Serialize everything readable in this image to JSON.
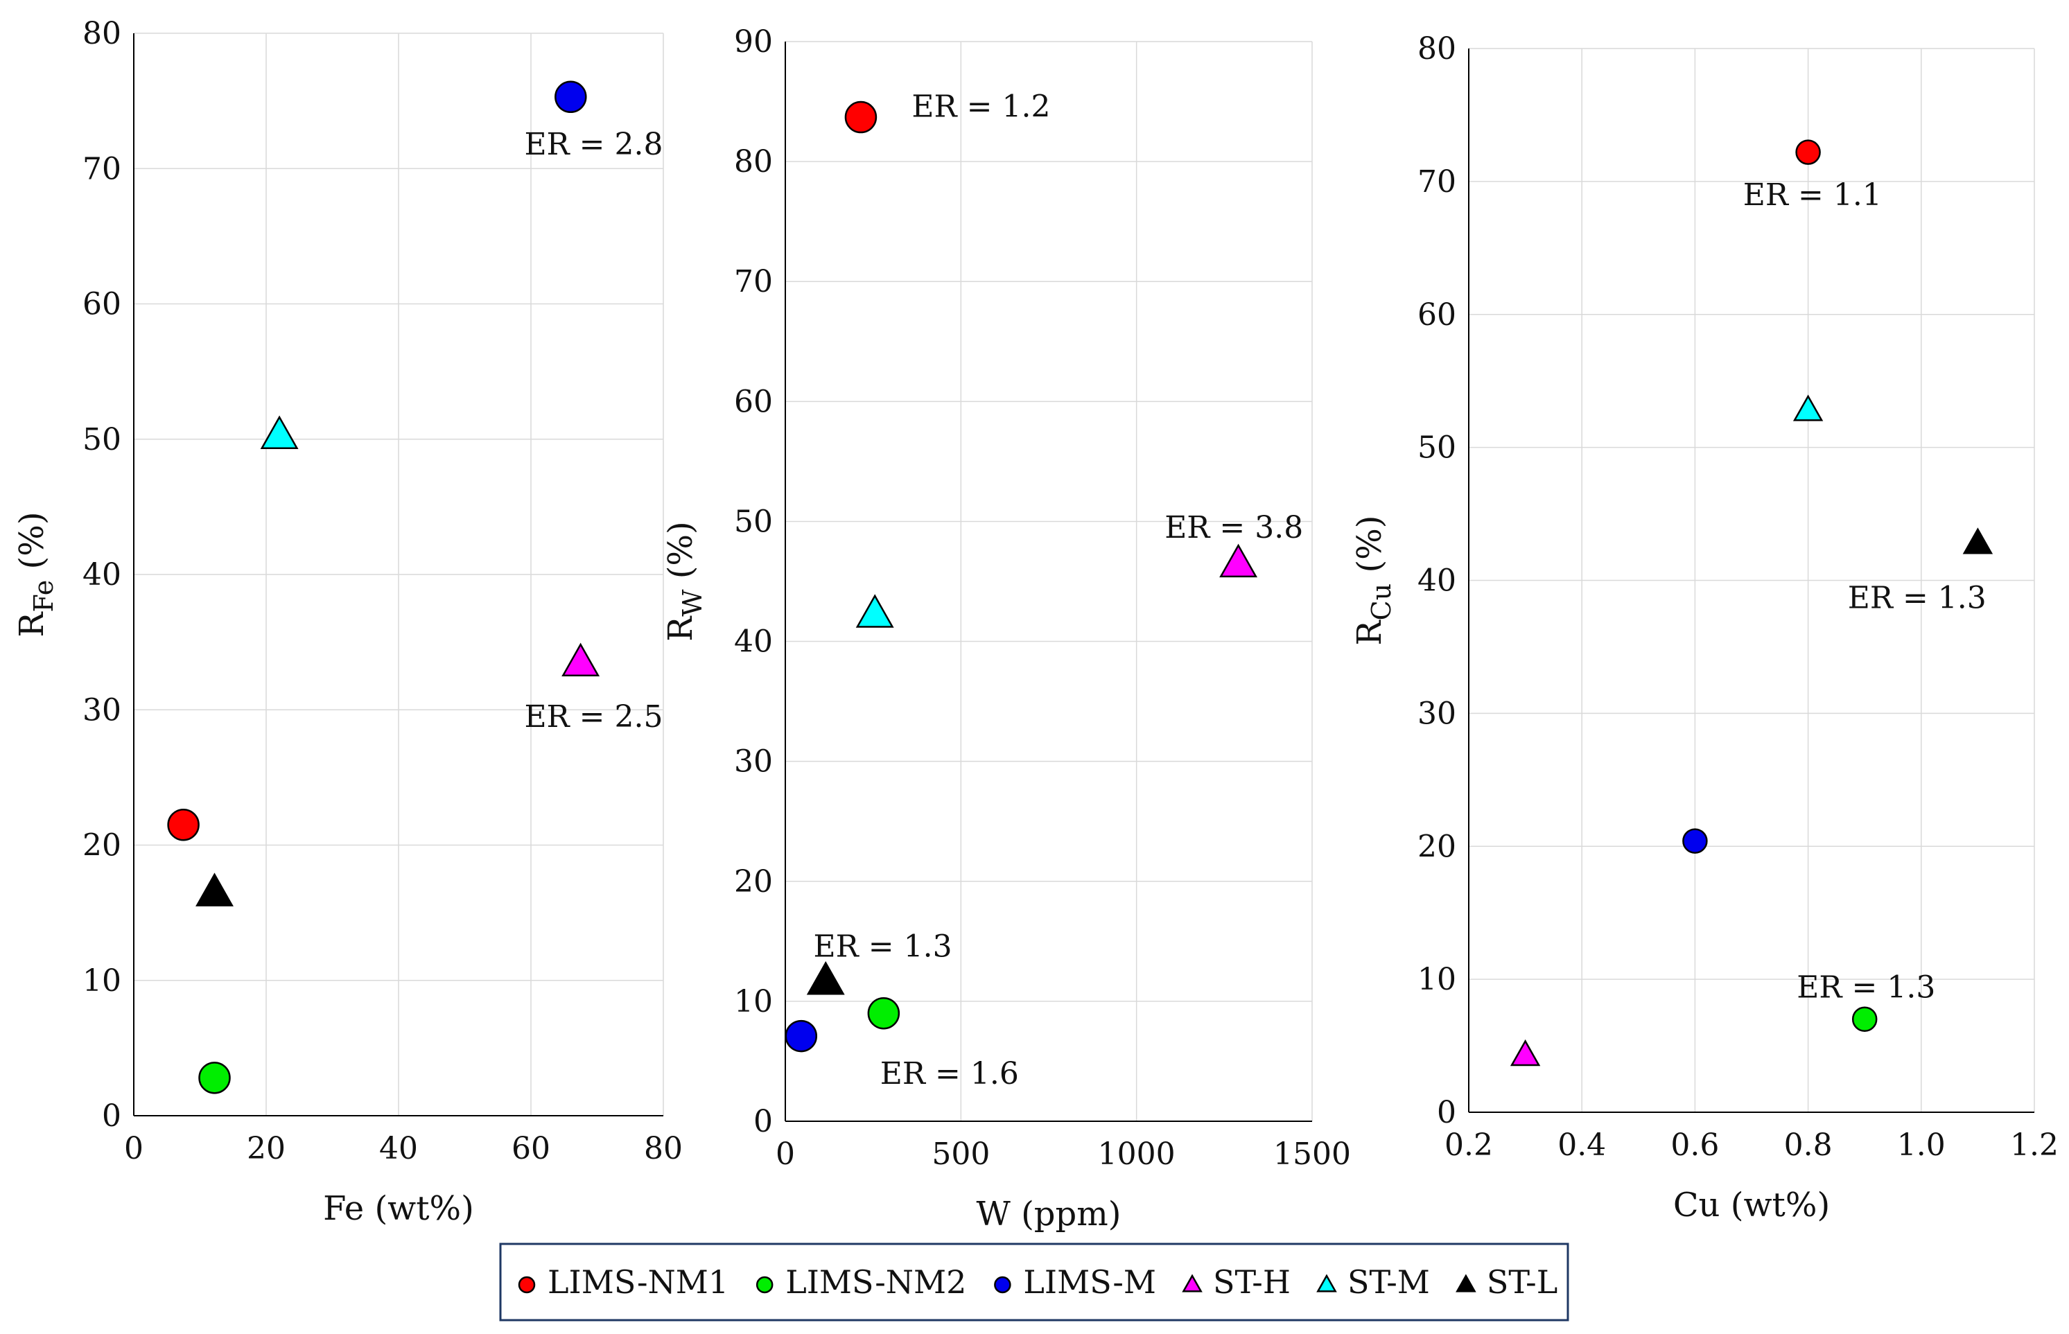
{
  "chart_data": [
    {
      "type": "scatter",
      "xlabel": "Fe (wt%)",
      "ylabel": {
        "base": "R",
        "sub": "Fe",
        "suffix": " (%)"
      },
      "xlim": [
        0,
        80
      ],
      "ylim": [
        0,
        80
      ],
      "xticks": [
        0,
        20,
        40,
        60,
        80
      ],
      "yticks": [
        0,
        10,
        20,
        30,
        40,
        50,
        60,
        70,
        80
      ],
      "xtick_labels": [
        "0",
        "20",
        "40",
        "60",
        "80"
      ],
      "ytick_labels": [
        "0",
        "10",
        "20",
        "30",
        "40",
        "50",
        "60",
        "70",
        "80"
      ],
      "grid": true,
      "points": [
        {
          "series": "LIMS-NM1",
          "x": 7.5,
          "y": 21.5
        },
        {
          "series": "LIMS-NM2",
          "x": 12.2,
          "y": 2.8
        },
        {
          "series": "LIMS-M",
          "x": 66.0,
          "y": 75.3
        },
        {
          "series": "ST-H",
          "x": 67.5,
          "y": 33.5
        },
        {
          "series": "ST-M",
          "x": 22.0,
          "y": 50.3
        },
        {
          "series": "ST-L",
          "x": 12.2,
          "y": 16.5
        }
      ],
      "annotations": [
        {
          "text": "ER = 2.8",
          "x": 59.0,
          "y": 71.8
        },
        {
          "text": "ER = 2.5",
          "x": 59.0,
          "y": 29.5
        }
      ]
    },
    {
      "type": "scatter",
      "xlabel": "W (ppm)",
      "ylabel": {
        "base": "R",
        "sub": "W",
        "suffix": " (%)"
      },
      "xlim": [
        0,
        1500
      ],
      "ylim": [
        0,
        90
      ],
      "xticks": [
        0,
        500,
        1000,
        1500
      ],
      "yticks": [
        0,
        10,
        20,
        30,
        40,
        50,
        60,
        70,
        80,
        90
      ],
      "xtick_labels": [
        "0",
        "500",
        "1000",
        "1500"
      ],
      "ytick_labels": [
        "0",
        "10",
        "20",
        "30",
        "40",
        "50",
        "60",
        "70",
        "80",
        "90"
      ],
      "grid": true,
      "points": [
        {
          "series": "LIMS-NM1",
          "x": 215,
          "y": 83.7
        },
        {
          "series": "LIMS-NM2",
          "x": 280,
          "y": 9.0
        },
        {
          "series": "LIMS-M",
          "x": 45,
          "y": 7.1
        },
        {
          "series": "ST-H",
          "x": 1290,
          "y": 46.5
        },
        {
          "series": "ST-M",
          "x": 255,
          "y": 42.3
        },
        {
          "series": "ST-L",
          "x": 115,
          "y": 11.7
        }
      ],
      "annotations": [
        {
          "text": "ER = 1.2",
          "x": 360,
          "y": 84.6
        },
        {
          "text": "ER = 3.8",
          "x": 1080,
          "y": 49.5
        },
        {
          "text": "ER = 1.3",
          "x": 80,
          "y": 14.6
        },
        {
          "text": "ER = 1.6",
          "x": 270,
          "y": 4.0
        }
      ]
    },
    {
      "type": "scatter",
      "xlabel": "Cu (wt%)",
      "ylabel": {
        "base": "R",
        "sub": "Cu",
        "suffix": " (%)"
      },
      "xlim": [
        0.2,
        1.2
      ],
      "ylim": [
        0,
        80
      ],
      "xticks": [
        0.2,
        0.4,
        0.6,
        0.8,
        1.0,
        1.2
      ],
      "yticks": [
        0,
        10,
        20,
        30,
        40,
        50,
        60,
        70,
        80
      ],
      "xtick_labels": [
        "0.2",
        "0.4",
        "0.6",
        "0.8",
        "1.0",
        "1.2"
      ],
      "ytick_labels": [
        "0",
        "10",
        "20",
        "30",
        "40",
        "50",
        "60",
        "70",
        "80"
      ],
      "grid": true,
      "points": [
        {
          "series": "LIMS-NM1",
          "x": 0.8,
          "y": 72.2
        },
        {
          "series": "LIMS-NM2",
          "x": 0.9,
          "y": 7.0
        },
        {
          "series": "LIMS-M",
          "x": 0.6,
          "y": 20.4
        },
        {
          "series": "ST-H",
          "x": 0.3,
          "y": 4.3
        },
        {
          "series": "ST-M",
          "x": 0.8,
          "y": 52.8
        },
        {
          "series": "ST-L",
          "x": 1.1,
          "y": 42.8
        }
      ],
      "annotations": [
        {
          "text": "ER = 1.1",
          "x": 0.685,
          "y": 69.0
        },
        {
          "text": "ER = 1.3",
          "x": 0.87,
          "y": 38.7
        },
        {
          "text": "ER = 1.3",
          "x": 0.78,
          "y": 9.4
        }
      ]
    }
  ],
  "series_styles": [
    {
      "name": "LIMS-NM1",
      "marker": "circle",
      "color": "#ff0000"
    },
    {
      "name": "LIMS-NM2",
      "marker": "circle",
      "color": "#00ee00"
    },
    {
      "name": "LIMS-M",
      "marker": "circle",
      "color": "#0000ee"
    },
    {
      "name": "ST-H",
      "marker": "triangle",
      "color": "#ff00ff"
    },
    {
      "name": "ST-M",
      "marker": "triangle",
      "color": "#00ffff"
    },
    {
      "name": "ST-L",
      "marker": "triangle",
      "color": "#000000"
    }
  ],
  "legend": {
    "position": "bottom-center",
    "border_color": "#1f3864"
  }
}
